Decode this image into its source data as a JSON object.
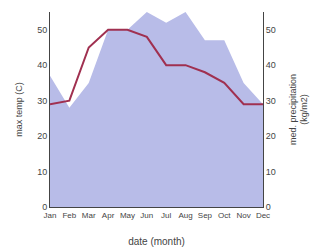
{
  "chart_data": {
    "type": "line",
    "xlabel": "date (month)",
    "ylabel": "max temp (C)",
    "y2label": "med. precipitation\n(kg/m2)",
    "categories": [
      "Jan",
      "Feb",
      "Mar",
      "Apr",
      "May",
      "Jun",
      "Jul",
      "Aug",
      "Sep",
      "Oct",
      "Nov",
      "Dec"
    ],
    "series": [
      {
        "type": "area",
        "axis": "y2",
        "color": "#b8bce8",
        "values": [
          37,
          28,
          35,
          50,
          50,
          55,
          52,
          55,
          47,
          47,
          35,
          29
        ]
      },
      {
        "type": "line",
        "color": "#a03050",
        "values": [
          29,
          30,
          45,
          50,
          50,
          48,
          40,
          40,
          38,
          35,
          29,
          29
        ]
      }
    ],
    "ylim": [
      0,
      55
    ],
    "yticks": [
      0,
      10,
      20,
      30,
      40,
      50
    ],
    "y2lim": [
      0,
      55
    ],
    "y2ticks": [
      0,
      10,
      20,
      30,
      40,
      50
    ],
    "grid": false
  }
}
